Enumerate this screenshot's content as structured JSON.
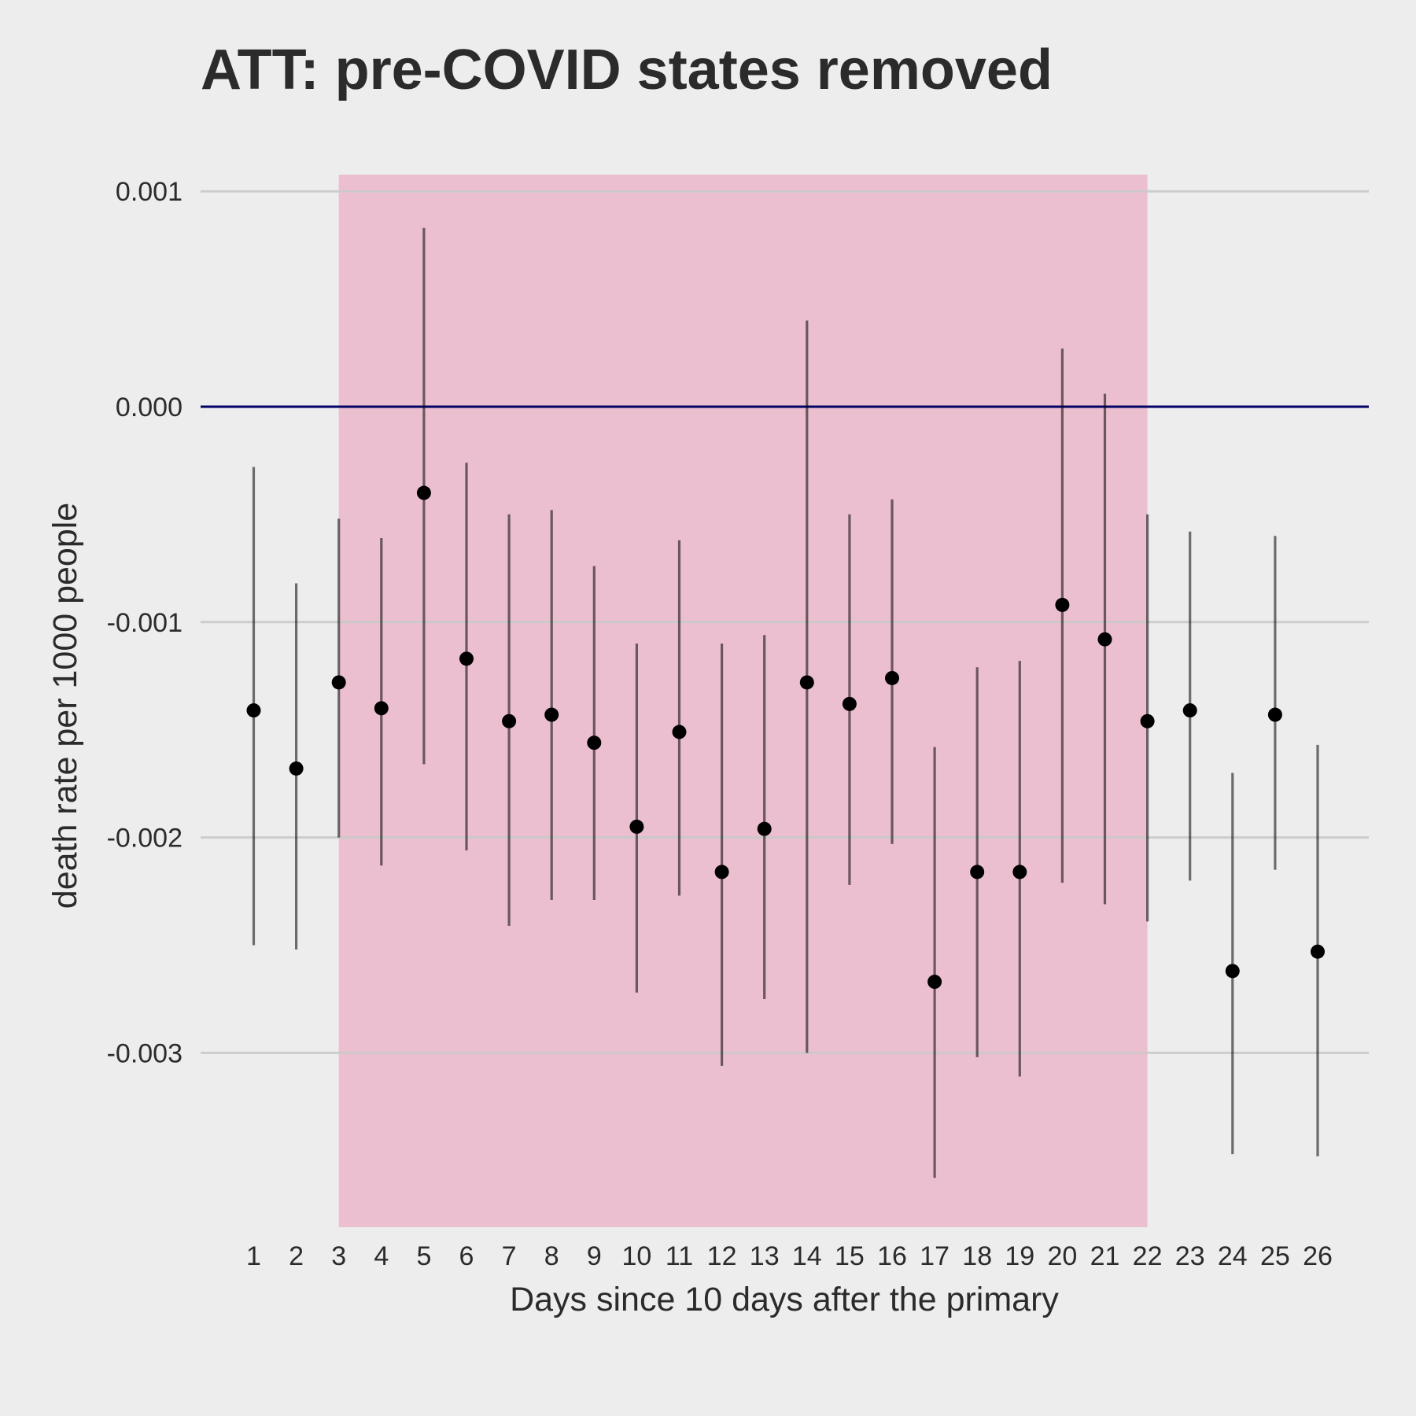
{
  "chart_data": {
    "type": "scatter",
    "title": "ATT: pre-COVID states removed",
    "xlabel": "Days since 10 days after the primary",
    "ylabel": "death rate per 1000 people",
    "x_ticks": [
      "1",
      "2",
      "3",
      "4",
      "5",
      "6",
      "7",
      "8",
      "9",
      "10",
      "11",
      "12",
      "13",
      "14",
      "15",
      "16",
      "17",
      "18",
      "19",
      "20",
      "21",
      "22",
      "23",
      "24",
      "25",
      "26"
    ],
    "y_ticks": [
      0.001,
      0.0,
      -0.001,
      -0.002,
      -0.003
    ],
    "y_tick_labels": [
      "0.001",
      "0.000",
      "-0.001",
      "-0.002",
      "-0.003"
    ],
    "ylim": [
      -0.00378,
      0.00106
    ],
    "xlim": [
      0,
      27.2
    ],
    "grid": "horizontal",
    "reference_line": {
      "y": 0,
      "color": "#000066"
    },
    "highlight_region": {
      "x_start": 3,
      "x_end": 22,
      "color": "#ecbfd0"
    },
    "colors": {
      "background": "#ededed",
      "grid": "#c9c9c9",
      "point": "#000000",
      "errorbar": "#6a6a6a",
      "text": "#2b2b2b"
    },
    "series": [
      {
        "x": [
          1,
          2,
          3,
          4,
          5,
          6,
          7,
          8,
          9,
          10,
          11,
          12,
          13,
          14,
          15,
          16,
          17,
          18,
          19,
          20,
          21,
          22,
          23,
          24,
          25,
          26
        ],
        "y": [
          -0.00141,
          -0.00168,
          -0.00128,
          -0.0014,
          -0.0004,
          -0.00117,
          -0.00146,
          -0.00143,
          -0.00156,
          -0.00195,
          -0.00151,
          -0.00216,
          -0.00196,
          -0.00128,
          -0.00138,
          -0.00126,
          -0.00267,
          -0.00216,
          -0.00216,
          -0.00092,
          -0.00108,
          -0.00146,
          -0.00141,
          -0.00262,
          -0.00143,
          -0.00253
        ],
        "lower": [
          -0.0025,
          -0.00252,
          -0.002,
          -0.00213,
          -0.00166,
          -0.00206,
          -0.00241,
          -0.00229,
          -0.00229,
          -0.00272,
          -0.00227,
          -0.00306,
          -0.00275,
          -0.003,
          -0.00222,
          -0.00203,
          -0.00358,
          -0.00302,
          -0.00311,
          -0.00221,
          -0.00231,
          -0.00239,
          -0.0022,
          -0.00347,
          -0.00215,
          -0.00348
        ],
        "upper": [
          -0.00028,
          -0.00082,
          -0.00052,
          -0.00061,
          0.00083,
          -0.00026,
          -0.0005,
          -0.00048,
          -0.00074,
          -0.0011,
          -0.00062,
          -0.0011,
          -0.00106,
          0.0004,
          -0.0005,
          -0.00043,
          -0.00158,
          -0.00121,
          -0.00118,
          0.00027,
          6e-05,
          -0.0005,
          -0.00058,
          -0.0017,
          -0.0006,
          -0.00157
        ]
      }
    ]
  }
}
